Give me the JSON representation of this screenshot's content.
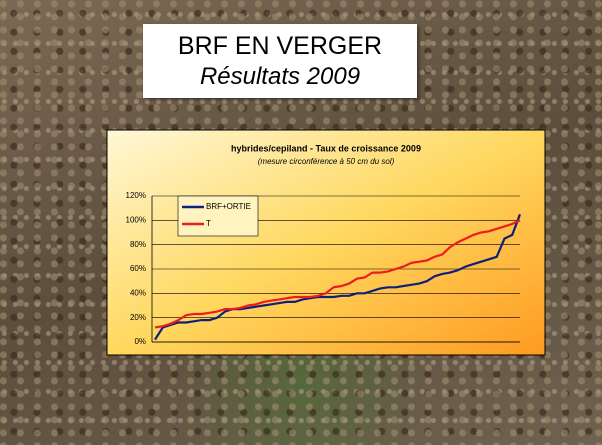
{
  "slide": {
    "title": "BRF EN VERGER",
    "subtitle": "Résultats 2009"
  },
  "chart_data": {
    "type": "line",
    "title": "hybrides/cepiland - Taux de croissance 2009",
    "subtitle": "(mesure circonférence à 50 cm du sol)",
    "series": [
      {
        "name": "BRF+ORTIE",
        "color": "#10207a",
        "values": [
          2,
          12,
          14,
          16,
          16,
          17,
          18,
          18,
          20,
          25,
          27,
          27,
          28,
          29,
          30,
          31,
          32,
          33,
          33,
          35,
          36,
          37,
          37,
          37,
          38,
          38,
          40,
          40,
          42,
          44,
          45,
          45,
          46,
          47,
          48,
          50,
          54,
          56,
          57,
          59,
          62,
          64,
          66,
          68,
          70,
          85,
          88,
          105
        ]
      },
      {
        "name": "T",
        "color": "#ee1c1c",
        "values": [
          12,
          13,
          15,
          18,
          22,
          23,
          23,
          24,
          25,
          27,
          27,
          28,
          30,
          31,
          33,
          34,
          35,
          36,
          37,
          37,
          37,
          38,
          40,
          45,
          46,
          48,
          52,
          53,
          57,
          57,
          58,
          60,
          62,
          65,
          66,
          67,
          70,
          72,
          78,
          82,
          85,
          88,
          90,
          91,
          93,
          95,
          97,
          100
        ]
      }
    ],
    "ylim": [
      0,
      120
    ],
    "yticks": [
      {
        "value": 0,
        "label": "0%"
      },
      {
        "value": 20,
        "label": "20%"
      },
      {
        "value": 40,
        "label": "40%"
      },
      {
        "value": 60,
        "label": "60%"
      },
      {
        "value": 80,
        "label": "80%"
      },
      {
        "value": 100,
        "label": "100%"
      },
      {
        "value": 120,
        "label": "120%"
      }
    ],
    "grid": true,
    "legend": "upper-left"
  }
}
